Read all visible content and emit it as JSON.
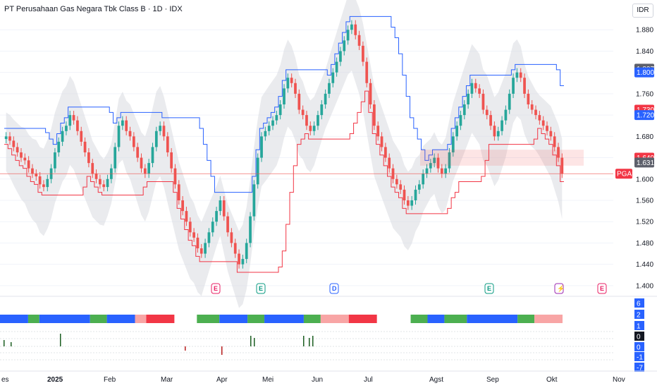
{
  "header": {
    "title": "PT Perusahaan Gas Negara Tbk Class B · 1D · IDX",
    "currency": "IDR"
  },
  "colors": {
    "up": "#26a69a",
    "down": "#ef5350",
    "upper_band": "#2962ff",
    "lower_band": "#f23645",
    "cloud": "#d9dbe0",
    "tag_blue": "#2962ff",
    "tag_red": "#f23645",
    "tag_gray": "#5d606b"
  },
  "chart_data": {
    "type": "candlestick",
    "symbol": "PGAS",
    "ylim": [
      1380,
      1920
    ],
    "y_ticks": [
      "1.880",
      "1.840",
      "1.800",
      "1.760",
      "1.720",
      "1.680",
      "1.640",
      "1.600",
      "1.560",
      "1.520",
      "1.480",
      "1.440",
      "1.400"
    ],
    "x_labels": [
      "es",
      "2025",
      "Feb",
      "Mar",
      "Apr",
      "Mei",
      "Jun",
      "Jul",
      "Agst",
      "Sep",
      "Okt",
      "Nov"
    ],
    "price_tags": [
      {
        "label": "1.807",
        "value": 1807,
        "color": "gray"
      },
      {
        "label": "1.800",
        "value": 1800,
        "color": "blue"
      },
      {
        "label": "1.730",
        "value": 1730,
        "color": "red"
      },
      {
        "label": "1.720",
        "value": 1720,
        "color": "blue"
      },
      {
        "label": "1.640",
        "value": 1640,
        "color": "red"
      },
      {
        "label": "1.631",
        "value": 1631,
        "color": "gray"
      }
    ],
    "symbol_tag": "PGAS",
    "events": [
      {
        "label": "E",
        "month": "Apr"
      },
      {
        "label": "E",
        "month": "Mei"
      },
      {
        "label": "D",
        "month": "Jun"
      },
      {
        "label": "E",
        "month": "Agst"
      },
      {
        "label": "⚡",
        "month": "Sep"
      },
      {
        "label": "E",
        "month": "Okt"
      }
    ],
    "close_series": [
      1680,
      1672,
      1660,
      1650,
      1640,
      1635,
      1620,
      1610,
      1605,
      1590,
      1585,
      1600,
      1620,
      1650,
      1670,
      1690,
      1700,
      1720,
      1710,
      1690,
      1670,
      1650,
      1630,
      1610,
      1600,
      1590,
      1585,
      1600,
      1620,
      1660,
      1700,
      1710,
      1690,
      1680,
      1660,
      1640,
      1620,
      1610,
      1630,
      1660,
      1690,
      1700,
      1680,
      1650,
      1620,
      1590,
      1560,
      1540,
      1520,
      1500,
      1490,
      1470,
      1460,
      1480,
      1500,
      1520,
      1540,
      1560,
      1530,
      1500,
      1480,
      1460,
      1440,
      1450,
      1480,
      1530,
      1590,
      1640,
      1680,
      1690,
      1700,
      1710,
      1720,
      1740,
      1770,
      1790,
      1780,
      1760,
      1730,
      1720,
      1700,
      1690,
      1700,
      1720,
      1740,
      1760,
      1780,
      1800,
      1820,
      1840,
      1860,
      1880,
      1890,
      1870,
      1850,
      1820,
      1780,
      1740,
      1700,
      1680,
      1660,
      1640,
      1620,
      1600,
      1590,
      1580,
      1560,
      1550,
      1560,
      1580,
      1590,
      1610,
      1620,
      1630,
      1640,
      1620,
      1610,
      1620,
      1650,
      1680,
      1700,
      1720,
      1740,
      1760,
      1780,
      1770,
      1760,
      1730,
      1720,
      1700,
      1680,
      1690,
      1710,
      1730,
      1760,
      1790,
      1800,
      1790,
      1760,
      1740,
      1730,
      1720,
      1710,
      1700,
      1690,
      1680,
      1660,
      1640,
      1610
    ],
    "volatility_panel": {
      "axis_labels": [
        "6",
        "2",
        "1",
        "0",
        "0",
        "-1",
        "-7"
      ],
      "segments": [
        {
          "from": 0,
          "to": 0.05,
          "color": "#2962ff"
        },
        {
          "from": 0.05,
          "to": 0.07,
          "color": "#4caf50"
        },
        {
          "from": 0.07,
          "to": 0.16,
          "color": "#2962ff"
        },
        {
          "from": 0.16,
          "to": 0.19,
          "color": "#4caf50"
        },
        {
          "from": 0.19,
          "to": 0.24,
          "color": "#2962ff"
        },
        {
          "from": 0.24,
          "to": 0.26,
          "color": "#f8a5a5"
        },
        {
          "from": 0.26,
          "to": 0.31,
          "color": "#f23645"
        },
        {
          "from": 0.35,
          "to": 0.39,
          "color": "#4caf50"
        },
        {
          "from": 0.39,
          "to": 0.44,
          "color": "#2962ff"
        },
        {
          "from": 0.44,
          "to": 0.47,
          "color": "#4caf50"
        },
        {
          "from": 0.47,
          "to": 0.54,
          "color": "#2962ff"
        },
        {
          "from": 0.54,
          "to": 0.57,
          "color": "#4caf50"
        },
        {
          "from": 0.57,
          "to": 0.62,
          "color": "#f8a5a5"
        },
        {
          "from": 0.62,
          "to": 0.67,
          "color": "#f23645"
        },
        {
          "from": 0.73,
          "to": 0.76,
          "color": "#4caf50"
        },
        {
          "from": 0.76,
          "to": 0.79,
          "color": "#2962ff"
        },
        {
          "from": 0.79,
          "to": 0.83,
          "color": "#4caf50"
        },
        {
          "from": 0.83,
          "to": 0.92,
          "color": "#2962ff"
        },
        {
          "from": 0.92,
          "to": 0.95,
          "color": "#4caf50"
        },
        {
          "from": 0.95,
          "to": 1.0,
          "color": "#f8a5a5"
        }
      ]
    }
  }
}
